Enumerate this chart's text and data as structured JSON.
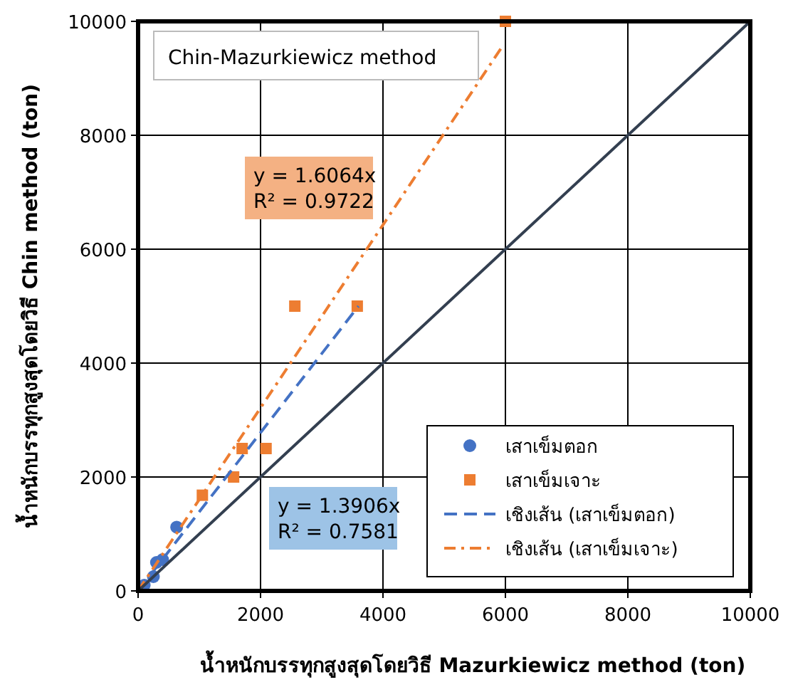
{
  "chart_data": {
    "type": "scatter",
    "title": "Chin-Mazurkiewicz method",
    "xlabel": "น้ำหนักบรรทุกสูงสุดโดยวิธี Mazurkiewicz method (ton)",
    "ylabel": "น้ำหนักบรรทุกสูงสุดโดยวิธี Chin method (ton)",
    "xlim": [
      0,
      10000
    ],
    "ylim": [
      0,
      10000
    ],
    "xticks": [
      0,
      2000,
      4000,
      6000,
      8000,
      10000
    ],
    "yticks": [
      0,
      2000,
      4000,
      6000,
      8000,
      10000
    ],
    "grid": true,
    "legend": "bottom right",
    "annotations": [
      "y = 1.6064x\nR² = 0.9722",
      "y = 1.3906x\nR² = 0.7581"
    ],
    "series": [
      {
        "name": "เสาเข็มตอก",
        "marker": "circle",
        "color": "#4472c4",
        "x": [
          100,
          250,
          300,
          400,
          630
        ],
        "values": [
          100,
          250,
          500,
          550,
          1120
        ]
      },
      {
        "name": "เสาเข็มเจาะ",
        "marker": "square",
        "color": "#ed7d31",
        "x": [
          1050,
          1560,
          1700,
          2090,
          2560,
          3580,
          6000
        ],
        "values": [
          1680,
          2000,
          2500,
          2500,
          5000,
          5000,
          10000
        ]
      },
      {
        "name": "เชิงเส้น (เสาเข็มตอก)",
        "type": "line",
        "line_style": "dashed",
        "color": "#4472c4",
        "x": [
          0,
          3600
        ],
        "values": [
          0,
          5000
        ]
      },
      {
        "name": "เชิงเส้น (เสาเข็มเจาะ)",
        "type": "line",
        "line_style": "dashdot",
        "color": "#ed7d31",
        "x": [
          0,
          5950
        ],
        "values": [
          0,
          9560
        ]
      },
      {
        "type": "line",
        "line_style": "solid",
        "color": "#333f50",
        "x": [
          0,
          10000
        ],
        "values": [
          0,
          10000
        ]
      }
    ]
  }
}
